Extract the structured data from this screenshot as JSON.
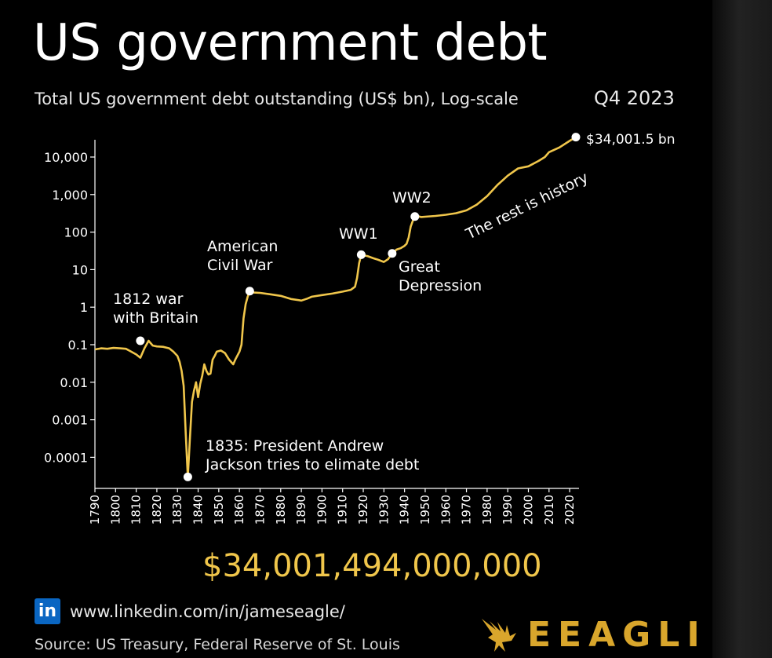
{
  "title": "US government debt",
  "subtitle": "Total US government debt outstanding (US$ bn), Log-scale",
  "period": "Q4 2023",
  "total_display": "$34,001,494,000,000",
  "linkedin": {
    "url": "www.linkedin.com/in/jameseagle/"
  },
  "source": "Source: US Treasury, Federal Reserve of St. Louis",
  "brand": {
    "name": "EEAGLI",
    "icon": "eagle-icon"
  },
  "colors": {
    "line": "#f0c64b",
    "axis": "#ffffff",
    "background": "#000000",
    "brand": "#d9a62c",
    "linkedin": "#0a66c2"
  },
  "chart_data": {
    "type": "line",
    "title": "US government debt",
    "subtitle": "Total US government debt outstanding (US$ bn), Log-scale",
    "y_scale": "log",
    "ylim": [
      1e-05,
      40000
    ],
    "xlim": [
      1790,
      2023
    ],
    "x_ticks": [
      "1790",
      "1800",
      "1810",
      "1820",
      "1830",
      "1840",
      "1850",
      "1860",
      "1870",
      "1880",
      "1890",
      "1900",
      "1910",
      "1920",
      "1930",
      "1940",
      "1950",
      "1960",
      "1970",
      "1980",
      "1990",
      "2000",
      "2010",
      "2020"
    ],
    "y_ticks": [
      {
        "value": 10000,
        "label": "10,000"
      },
      {
        "value": 1000,
        "label": "1,000"
      },
      {
        "value": 100,
        "label": "100"
      },
      {
        "value": 10,
        "label": "10"
      },
      {
        "value": 1,
        "label": "1"
      },
      {
        "value": 0.1,
        "label": "0.1"
      },
      {
        "value": 0.01,
        "label": "0.01"
      },
      {
        "value": 0.001,
        "label": "0.001"
      },
      {
        "value": 0.0001,
        "label": "0.0001"
      }
    ],
    "grid": false,
    "series": [
      {
        "x": [
          1790,
          1793,
          1796,
          1799,
          1802,
          1805,
          1807,
          1810,
          1812,
          1814,
          1816,
          1818,
          1820,
          1823,
          1826,
          1828,
          1830,
          1831,
          1832,
          1833,
          1834,
          1835,
          1836,
          1837,
          1838,
          1839,
          1840,
          1841,
          1842,
          1843,
          1844,
          1845,
          1846,
          1847,
          1848,
          1849,
          1851,
          1853,
          1855,
          1857,
          1858,
          1860,
          1861,
          1862,
          1863,
          1864,
          1865,
          1866,
          1867,
          1870,
          1875,
          1880,
          1885,
          1890,
          1893,
          1895,
          1900,
          1905,
          1910,
          1914,
          1916,
          1917,
          1918,
          1919,
          1920,
          1922,
          1925,
          1927,
          1930,
          1932,
          1934,
          1935,
          1936,
          1938,
          1940,
          1941,
          1942,
          1943,
          1944,
          1945,
          1946,
          1948,
          1950,
          1955,
          1960,
          1965,
          1970,
          1975,
          1980,
          1985,
          1990,
          1995,
          2000,
          2005,
          2008,
          2010,
          2015,
          2020,
          2023
        ],
        "y": [
          0.075,
          0.08,
          0.078,
          0.082,
          0.08,
          0.078,
          0.068,
          0.055,
          0.045,
          0.08,
          0.127,
          0.095,
          0.09,
          0.088,
          0.08,
          0.065,
          0.05,
          0.035,
          0.02,
          0.008,
          0.0004,
          3e-05,
          0.0003,
          0.003,
          0.006,
          0.01,
          0.004,
          0.009,
          0.015,
          0.03,
          0.02,
          0.016,
          0.017,
          0.04,
          0.05,
          0.065,
          0.07,
          0.06,
          0.04,
          0.03,
          0.04,
          0.065,
          0.1,
          0.5,
          1.2,
          1.9,
          2.68,
          2.7,
          2.45,
          2.4,
          2.2,
          2.0,
          1.65,
          1.5,
          1.7,
          1.9,
          2.1,
          2.3,
          2.6,
          2.9,
          3.5,
          6,
          15,
          25,
          24,
          23,
          20,
          18.5,
          16,
          19,
          27,
          29,
          34,
          37,
          43,
          49,
          72,
          140,
          200,
          260,
          270,
          252,
          257,
          270,
          290,
          320,
          380,
          540,
          910,
          1800,
          3200,
          4970,
          5670,
          7900,
          10000,
          13500,
          18000,
          27000,
          34001.5
        ]
      }
    ],
    "annotations": [
      {
        "x": 1812,
        "y": 0.127,
        "label": "1812 war with Britain",
        "lines": [
          "1812 war",
          "with Britain"
        ]
      },
      {
        "x": 1835,
        "y": 3e-05,
        "label": "1835: President Andrew Jackson tries to elimate debt",
        "lines": [
          "1835: President Andrew",
          "Jackson tries to elimate debt"
        ]
      },
      {
        "x": 1865,
        "y": 2.68,
        "label": "American Civil War",
        "lines": [
          "American",
          "Civil War"
        ]
      },
      {
        "x": 1919,
        "y": 25,
        "label": "WW1",
        "lines": [
          "WW1"
        ]
      },
      {
        "x": 1934,
        "y": 27,
        "label": "Great Depression",
        "lines": [
          "Great",
          "Depression"
        ]
      },
      {
        "x": 1945,
        "y": 260,
        "label": "WW2",
        "lines": [
          "WW2"
        ]
      },
      {
        "x": 2023,
        "y": 34001.5,
        "label": "$34,001.5 bn",
        "lines": [
          "$34,001.5 bn"
        ]
      },
      {
        "label": "The rest is history",
        "lines": [
          "The rest is history"
        ],
        "rotated": true
      }
    ]
  }
}
